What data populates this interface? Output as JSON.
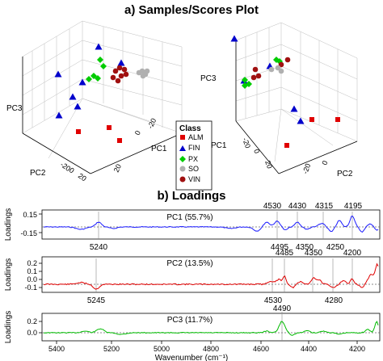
{
  "figure": {
    "title_a": "a) Samples/Scores Plot",
    "title_b": "b) Loadings"
  },
  "chart_data": [
    {
      "type": "scatter",
      "panel": "left",
      "axes": {
        "x": "PC1",
        "y": "PC2",
        "z": "PC3"
      },
      "tick_labels": [
        "-20",
        "-10",
        "0",
        "10",
        "20"
      ],
      "classes": [
        {
          "name": "ALM",
          "color": "#e00000",
          "marker": "square"
        },
        {
          "name": "FIN",
          "color": "#0000cc",
          "marker": "triangle"
        },
        {
          "name": "PX",
          "color": "#00cc00",
          "marker": "diamond"
        },
        {
          "name": "SO",
          "color": "#b0b0b0",
          "marker": "circle"
        },
        {
          "name": "VIN",
          "color": "#a01010",
          "marker": "circle"
        }
      ]
    },
    {
      "type": "scatter",
      "panel": "right",
      "axes": {
        "x": "PC1",
        "y": "PC2",
        "z": "PC3"
      },
      "tick_labels": [
        "-20",
        "-10",
        "0",
        "10",
        "20"
      ]
    },
    {
      "type": "line",
      "series_name": "PC1 (55.7%)",
      "ylabel": "Loadings",
      "yticks": [
        "0.15",
        "-0.15"
      ],
      "color": "#1a1aff",
      "markers_top": [
        "4530",
        "4430",
        "4315",
        "4195"
      ],
      "markers_bottom": [
        "5240",
        "4495",
        "4350",
        "4250"
      ]
    },
    {
      "type": "line",
      "series_name": "PC2 (13.5%)",
      "ylabel": "Loadings",
      "yticks": [
        "0.2",
        "0.1",
        "0.0",
        "-0.1"
      ],
      "color": "#e00000",
      "markers_top": [
        "4485",
        "4350",
        "4200"
      ],
      "markers_bottom": [
        "5245",
        "4530",
        "4280"
      ]
    },
    {
      "type": "line",
      "series_name": "PC3 (11.7%)",
      "ylabel": "Loadings",
      "yticks": [
        "0.2",
        "0.0"
      ],
      "color": "#00bb00",
      "markers_top": [
        "4490"
      ],
      "markers_bottom": [],
      "xlabel": "Wavenumber (cm⁻¹)",
      "xticks": [
        "5400",
        "5200",
        "5000",
        "4800",
        "4600",
        "4400",
        "4200"
      ]
    }
  ],
  "legend": {
    "title": "Class",
    "items": [
      "ALM",
      "FIN",
      "PX",
      "SO",
      "VIN"
    ]
  }
}
